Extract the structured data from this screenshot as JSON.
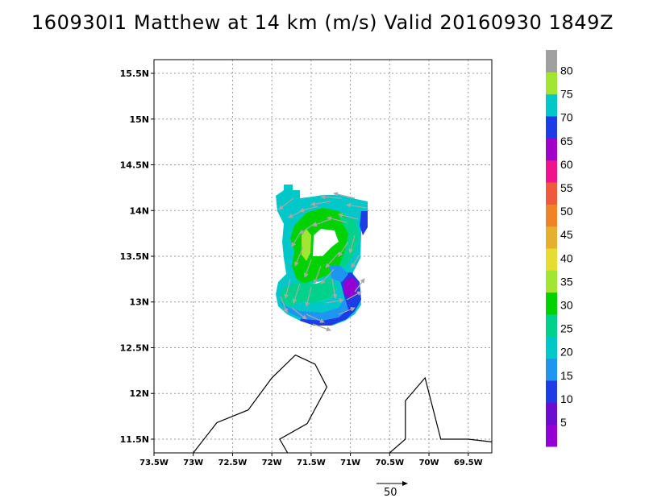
{
  "title": "160930I1 Matthew at 14 km (m/s) Valid 20160930 1849Z",
  "colors": {
    "grid": "#9a9a9a",
    "coast": "#000000",
    "arrows": "#a8a8a8",
    "colorbar": [
      "#9400d3",
      "#6a0dd0",
      "#1e3ce6",
      "#1e96f0",
      "#00c8c8",
      "#00d28c",
      "#00d200",
      "#a0e632",
      "#e6dc32",
      "#e6af2d",
      "#f08228",
      "#f05a3c",
      "#f0148c",
      "#a000c8",
      "#1e3ce6",
      "#00c8c8",
      "#a0e632",
      "#a0a0a0"
    ]
  },
  "chart_data": {
    "type": "heatmap",
    "title": "160930I1 Matthew at 14 km (m/s) Valid 20160930 1849Z",
    "xlabel": "",
    "ylabel": "",
    "xlim": [
      -73.5,
      -69.2
    ],
    "ylim": [
      11.35,
      15.65
    ],
    "x_ticks": [
      -73.5,
      -73.0,
      -72.5,
      -72.0,
      -71.5,
      -71.0,
      -70.5,
      -70.0,
      -69.5
    ],
    "x_tick_labels": [
      "73.5W",
      "73W",
      "72.5W",
      "72W",
      "71.5W",
      "71W",
      "70.5W",
      "70W",
      "69.5W"
    ],
    "y_ticks": [
      11.5,
      12.0,
      12.5,
      13.0,
      13.5,
      14.0,
      14.5,
      15.0,
      15.5
    ],
    "y_tick_labels": [
      "11.5N",
      "12N",
      "12.5N",
      "13N",
      "13.5N",
      "14N",
      "14.5N",
      "15N",
      "15.5N"
    ],
    "grid": true,
    "colorbar_levels": [
      5,
      10,
      15,
      20,
      25,
      30,
      35,
      40,
      45,
      50,
      55,
      60,
      65,
      70,
      75,
      80
    ],
    "colorbar_labels": [
      "5",
      "10",
      "15",
      "20",
      "25",
      "30",
      "35",
      "40",
      "45",
      "50",
      "55",
      "60",
      "65",
      "70",
      "75",
      "80"
    ],
    "reference_vector": {
      "label": "50",
      "value": 50
    },
    "wind_field": [
      {
        "lon": -71.85,
        "lat": 14.1,
        "speed": 22
      },
      {
        "lon": -71.75,
        "lat": 14.0,
        "speed": 21
      },
      {
        "lon": -71.55,
        "lat": 13.95,
        "speed": 22
      },
      {
        "lon": -71.35,
        "lat": 13.95,
        "speed": 23
      },
      {
        "lon": -71.15,
        "lat": 13.95,
        "speed": 24
      },
      {
        "lon": -70.95,
        "lat": 13.9,
        "speed": 21
      },
      {
        "lon": -71.75,
        "lat": 13.7,
        "speed": 24
      },
      {
        "lon": -71.6,
        "lat": 13.6,
        "speed": 34
      },
      {
        "lon": -71.5,
        "lat": 13.45,
        "speed": 31
      },
      {
        "lon": -71.55,
        "lat": 13.25,
        "speed": 29
      },
      {
        "lon": -71.2,
        "lat": 13.7,
        "speed": 27
      },
      {
        "lon": -71.0,
        "lat": 13.5,
        "speed": 26
      },
      {
        "lon": -71.0,
        "lat": 13.35,
        "speed": 23
      },
      {
        "lon": -71.2,
        "lat": 13.2,
        "speed": 26
      },
      {
        "lon": -71.8,
        "lat": 13.05,
        "speed": 22
      },
      {
        "lon": -71.6,
        "lat": 12.95,
        "speed": 20
      },
      {
        "lon": -71.35,
        "lat": 12.85,
        "speed": 16
      },
      {
        "lon": -71.1,
        "lat": 12.8,
        "speed": 13
      },
      {
        "lon": -71.0,
        "lat": 13.1,
        "speed": 6
      },
      {
        "lon": -70.9,
        "lat": 12.95,
        "speed": 11
      }
    ],
    "coastlines": [
      [
        [
          -73.0,
          11.35
        ],
        [
          -72.7,
          11.68
        ],
        [
          -72.3,
          11.82
        ],
        [
          -72.0,
          12.17
        ],
        [
          -71.7,
          12.42
        ],
        [
          -71.45,
          12.32
        ],
        [
          -71.3,
          12.07
        ],
        [
          -71.55,
          11.67
        ],
        [
          -71.9,
          11.5
        ],
        [
          -71.8,
          11.35
        ]
      ],
      [
        [
          -70.5,
          11.35
        ],
        [
          -70.3,
          11.5
        ],
        [
          -70.3,
          11.92
        ],
        [
          -70.05,
          12.17
        ],
        [
          -69.85,
          11.5
        ],
        [
          -69.5,
          11.5
        ],
        [
          -69.2,
          11.47
        ]
      ]
    ]
  }
}
